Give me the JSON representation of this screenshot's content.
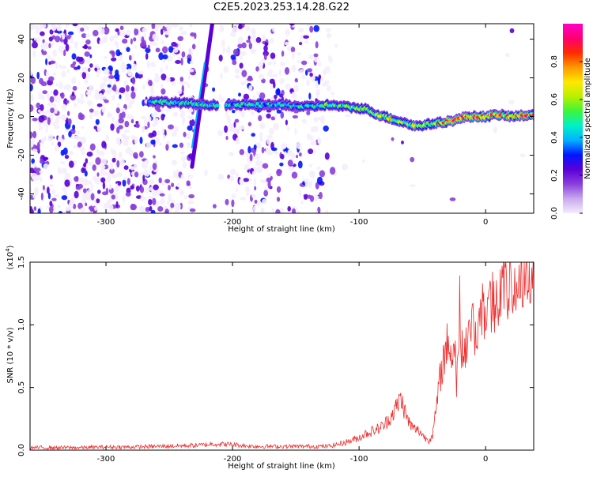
{
  "title": "C2E5.2023.253.14.28.G22",
  "colors": {
    "axis": "#000000",
    "snr_line": "#ee2b2b",
    "colormap": [
      "#f4eefc",
      "#c8a8ee",
      "#8a3fdc",
      "#5b00d8",
      "#0016ff",
      "#00b2ff",
      "#00f0c8",
      "#3cf53c",
      "#b8f000",
      "#ffe800",
      "#ff9a00",
      "#ff2a00",
      "#ff0070",
      "#ff00c8"
    ]
  },
  "chart_data": [
    {
      "type": "heatmap",
      "title": "",
      "xlabel": "Height of straight line (km)",
      "ylabel": "Frequency (Hz)",
      "xlim": [
        -360,
        38
      ],
      "ylim": [
        -50,
        48
      ],
      "xticks": [
        -300,
        -200,
        -100,
        0
      ],
      "yticks": [
        -40,
        -20,
        0,
        20,
        40
      ],
      "colorbar": {
        "label": "Normalized spectral amplitude",
        "range": [
          0.0,
          1.0
        ],
        "ticks": [
          "0.0",
          "0.2",
          "0.4",
          "0.6",
          "0.8"
        ]
      },
      "ridge_trace": [
        {
          "x": -265,
          "y": 8
        },
        {
          "x": -240,
          "y": 7
        },
        {
          "x": -220,
          "y": 6
        },
        {
          "x": -200,
          "y": 6
        },
        {
          "x": -180,
          "y": 6
        },
        {
          "x": -160,
          "y": 6
        },
        {
          "x": -140,
          "y": 5
        },
        {
          "x": -125,
          "y": 6
        },
        {
          "x": -110,
          "y": 5
        },
        {
          "x": -95,
          "y": 4
        },
        {
          "x": -85,
          "y": 1
        },
        {
          "x": -75,
          "y": -1
        },
        {
          "x": -65,
          "y": -3
        },
        {
          "x": -55,
          "y": -5
        },
        {
          "x": -45,
          "y": -4
        },
        {
          "x": -35,
          "y": -3
        },
        {
          "x": -25,
          "y": -2
        },
        {
          "x": -15,
          "y": 0
        },
        {
          "x": 0,
          "y": 0
        },
        {
          "x": 10,
          "y": 1
        },
        {
          "x": 20,
          "y": 0
        },
        {
          "x": 38,
          "y": 1
        }
      ],
      "diagonal_trace": [
        {
          "x": -232,
          "y": -26
        },
        {
          "x": -216,
          "y": 48
        }
      ]
    },
    {
      "type": "line",
      "title": "",
      "xlabel": "Height of straight line (km)",
      "ylabel": "SNR (10 * v/v)",
      "y_multiplier_label": "(x10^4)",
      "xlim": [
        -360,
        38
      ],
      "ylim": [
        0,
        1.5
      ],
      "xticks": [
        -300,
        -200,
        -100,
        0
      ],
      "yticks": [
        0.0,
        0.5,
        1.0,
        1.5
      ],
      "series": [
        {
          "x": [
            -360,
            -340,
            -320,
            -300,
            -280,
            -260,
            -240,
            -225,
            -215,
            -200,
            -190,
            -180,
            -160,
            -140,
            -125,
            -115,
            -105,
            -100,
            -95,
            -90,
            -85,
            -80,
            -75,
            -70,
            -67,
            -62,
            -58,
            -52,
            -48,
            -45,
            -42,
            -40,
            -37,
            -34,
            -30,
            -26,
            -22,
            -18,
            -14,
            -10,
            -6,
            -2,
            2,
            6,
            10,
            14,
            18,
            22,
            26,
            30,
            34,
            38
          ],
          "values": [
            0.02,
            0.02,
            0.02,
            0.025,
            0.025,
            0.03,
            0.035,
            0.04,
            0.05,
            0.045,
            0.035,
            0.03,
            0.03,
            0.03,
            0.03,
            0.05,
            0.08,
            0.1,
            0.13,
            0.15,
            0.17,
            0.2,
            0.27,
            0.35,
            0.42,
            0.25,
            0.18,
            0.15,
            0.1,
            0.08,
            0.12,
            0.25,
            0.5,
            0.7,
            0.85,
            0.75,
            0.85,
            0.8,
            0.9,
            0.95,
            1.0,
            1.1,
            1.15,
            1.2,
            1.25,
            1.3,
            1.25,
            1.35,
            1.3,
            1.4,
            1.45,
            1.45
          ]
        }
      ]
    }
  ]
}
